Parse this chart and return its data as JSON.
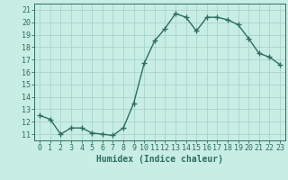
{
  "x": [
    0,
    1,
    2,
    3,
    4,
    5,
    6,
    7,
    8,
    9,
    10,
    11,
    12,
    13,
    14,
    15,
    16,
    17,
    18,
    19,
    20,
    21,
    22,
    23
  ],
  "y": [
    12.5,
    12.2,
    11.0,
    11.5,
    11.5,
    11.1,
    11.0,
    10.9,
    11.5,
    13.5,
    16.7,
    18.5,
    19.5,
    20.7,
    20.4,
    19.3,
    20.4,
    20.4,
    20.2,
    19.8,
    18.7,
    17.5,
    17.2,
    16.6
  ],
  "line_color": "#2e6e60",
  "marker": "+",
  "marker_size": 4,
  "marker_linewidth": 1.0,
  "line_width": 1.0,
  "background_color": "#c8ede5",
  "grid_color": "#a8d4cc",
  "xlabel": "Humidex (Indice chaleur)",
  "xlim": [
    -0.5,
    23.5
  ],
  "ylim": [
    10.5,
    21.5
  ],
  "yticks": [
    11,
    12,
    13,
    14,
    15,
    16,
    17,
    18,
    19,
    20,
    21
  ],
  "xticks": [
    0,
    1,
    2,
    3,
    4,
    5,
    6,
    7,
    8,
    9,
    10,
    11,
    12,
    13,
    14,
    15,
    16,
    17,
    18,
    19,
    20,
    21,
    22,
    23
  ],
  "tick_color": "#2e6e60",
  "label_fontsize": 7,
  "tick_fontsize": 6
}
